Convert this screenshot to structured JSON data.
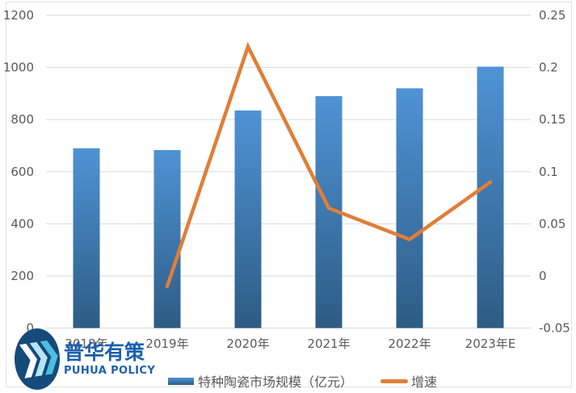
{
  "legend": {
    "bar_label": "特种陶瓷市场规模（亿元）",
    "line_label": "增速"
  },
  "logo": {
    "cn": "普华有策",
    "en": "PUHUA POLICY"
  },
  "colors": {
    "bar_top": "#4F93D6",
    "bar_bottom": "#2D5C84",
    "line": "#E07E38",
    "grid": "#D9D9D9",
    "axis_text": "#595959",
    "logo_navy": "#154A7C",
    "logo_blue": "#1D5FAE",
    "logo_cyan": "#6FC9E4"
  },
  "chart_data": {
    "type": "combo: bar + line",
    "title": "",
    "xlabel": "",
    "ylabel_left": "",
    "ylabel_right": "",
    "grid": true,
    "legend_position": "bottom",
    "categories": [
      "2018年",
      "2019年",
      "2020年",
      "2021年",
      "2022年",
      "2023年E"
    ],
    "series": [
      {
        "name": "特种陶瓷市场规模（亿元）",
        "type": "bar",
        "axis": "left",
        "values": [
          690,
          683,
          835,
          890,
          920,
          1003
        ]
      },
      {
        "name": "增速",
        "type": "line",
        "axis": "right",
        "values": [
          null,
          -0.01,
          0.22,
          0.065,
          0.035,
          0.09
        ]
      }
    ],
    "left_axis": {
      "min": 0,
      "max": 1200,
      "tick_step": 200,
      "ticks": [
        "1200",
        "1000",
        "800",
        "600",
        "400",
        "200",
        "0"
      ]
    },
    "right_axis": {
      "min": -0.05,
      "max": 0.25,
      "tick_step": 0.05,
      "ticks": [
        "0.25",
        "0.2",
        "0.15",
        "0.1",
        "0.05",
        "0",
        "-0.05"
      ]
    }
  }
}
